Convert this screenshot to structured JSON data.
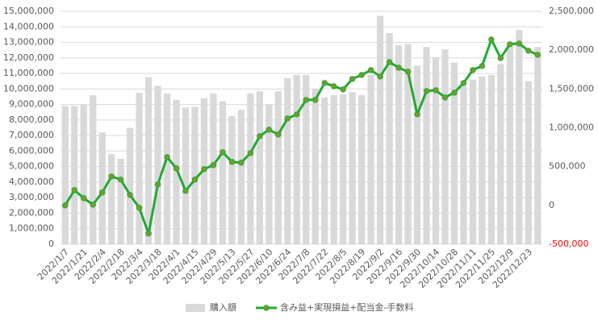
{
  "chart_data": {
    "type": "bar_line",
    "categories": [
      "2022/1/7",
      null,
      "2022/1/21",
      null,
      "2022/2/4",
      null,
      "2022/2/18",
      null,
      "2022/3/4",
      null,
      "2022/3/18",
      null,
      "2022/4/1",
      null,
      "2022/4/15",
      null,
      "2022/4/29",
      null,
      "2022/5/13",
      null,
      "2022/5/27",
      null,
      "2022/6/10",
      null,
      "2022/6/24",
      null,
      "2022/7/8",
      null,
      "2022/7/22",
      null,
      "2022/8/5",
      null,
      "2022/8/19",
      null,
      "2022/9/2",
      null,
      "2022/9/16",
      null,
      "2022/9/30",
      null,
      "2022/10/14",
      null,
      "2022/10/28",
      null,
      "2022/11/11",
      null,
      "2022/11/25",
      null,
      "2022/12/9",
      null,
      "2022/12/23",
      null
    ],
    "series": [
      {
        "name": "購入額",
        "type": "bar",
        "color": "#d9d9d9",
        "values": [
          8900000,
          8900000,
          9000000,
          9600000,
          7200000,
          5800000,
          5500000,
          7500000,
          9750000,
          10750000,
          10200000,
          9700000,
          9300000,
          8800000,
          8850000,
          9400000,
          9700000,
          9200000,
          8250000,
          8650000,
          9700000,
          9850000,
          9000000,
          9850000,
          10700000,
          10900000,
          10900000,
          10000000,
          9450000,
          9600000,
          9650000,
          9800000,
          9600000,
          10900000,
          14700000,
          13600000,
          12800000,
          12900000,
          11500000,
          12700000,
          12050000,
          12550000,
          11700000,
          10200000,
          10600000,
          10800000,
          10900000,
          11600000,
          12800000,
          13800000,
          10500000,
          12700000
        ]
      },
      {
        "name": "含み益+実現損益+配当金-手数料",
        "type": "line",
        "axis": "y2",
        "color": "#22aa33",
        "marker_color": "#7a9a2e",
        "values": [
          0,
          197000,
          93000,
          10000,
          166000,
          373000,
          332000,
          135000,
          -31000,
          -363000,
          270000,
          622000,
          477000,
          187000,
          332000,
          467000,
          519000,
          685000,
          560000,
          550000,
          674000,
          892000,
          975000,
          913000,
          1120000,
          1172000,
          1359000,
          1359000,
          1577000,
          1535000,
          1494000,
          1629000,
          1680000,
          1743000,
          1660000,
          1846000,
          1774000,
          1722000,
          1172000,
          1473000,
          1483000,
          1390000,
          1452000,
          1577000,
          1743000,
          1795000,
          2137000,
          1898000,
          2075000,
          2085000,
          1992000,
          1940000
        ]
      }
    ],
    "ylim": [
      0,
      15000000
    ],
    "yticks": [
      0,
      {
        "value": 1000000,
        "label": "1,000,000"
      },
      {
        "value": 2000000,
        "label": "2,000,000"
      },
      {
        "value": 3000000,
        "label": "3,000,000"
      },
      {
        "value": 4000000,
        "label": "4,000,000"
      },
      {
        "value": 5000000,
        "label": "5,000,000"
      },
      {
        "value": 6000000,
        "label": "6,000,000"
      },
      {
        "value": 7000000,
        "label": "7,000,000"
      },
      {
        "value": 8000000,
        "label": "8,000,000"
      },
      {
        "value": 9000000,
        "label": "9,000,000"
      },
      {
        "value": 10000000,
        "label": "10,000,000"
      },
      {
        "value": 11000000,
        "label": "11,000,000"
      },
      {
        "value": 12000000,
        "label": "12,000,000"
      },
      {
        "value": 13000000,
        "label": "13,000,000"
      },
      {
        "value": 14000000,
        "label": "14,000,000"
      },
      {
        "value": 15000000,
        "label": "15,000,000"
      }
    ],
    "y2lim": [
      -500000,
      2500000
    ],
    "y2ticks": [
      {
        "value": -500000,
        "label": "-500,000"
      },
      0,
      {
        "value": 500000,
        "label": "500,000"
      },
      {
        "value": 1000000,
        "label": "1,000,000"
      },
      {
        "value": 1500000,
        "label": "1,500,000"
      },
      {
        "value": 2000000,
        "label": "2,000,000"
      },
      {
        "value": 2500000,
        "label": "2,500,000"
      }
    ],
    "y2_negative_color": "#ff0000",
    "grid": true,
    "legend": "bottom"
  }
}
